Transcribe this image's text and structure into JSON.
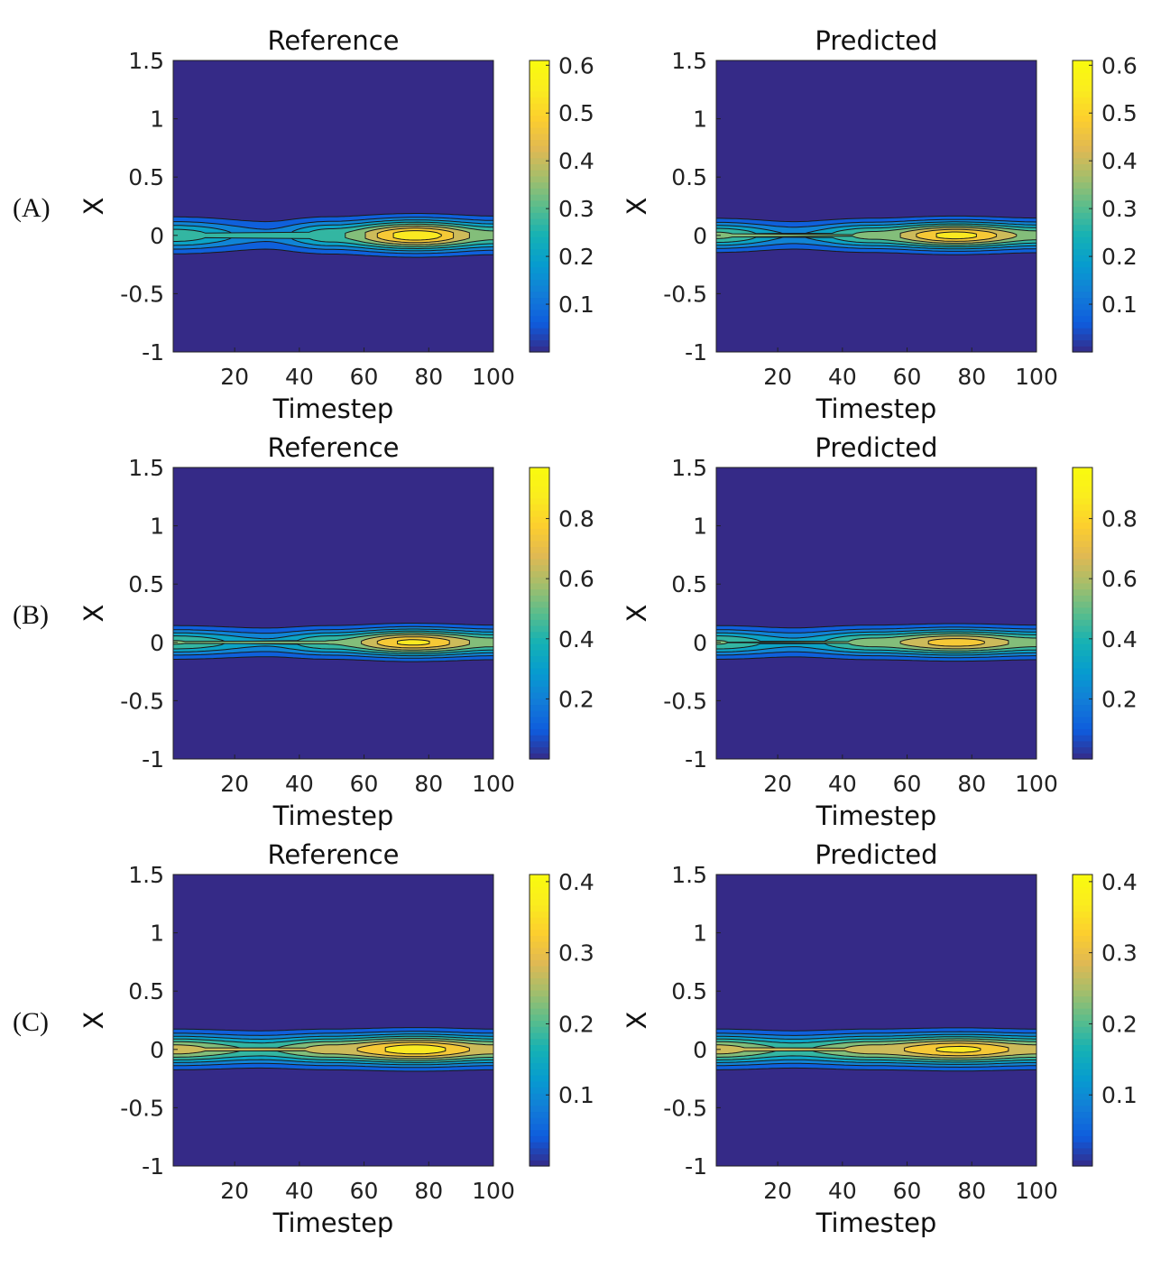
{
  "figure": {
    "rows": [
      {
        "label": "(A)"
      },
      {
        "label": "(B)"
      },
      {
        "label": "(C)"
      }
    ]
  },
  "colormap": "parula",
  "chart_data": [
    {
      "type": "heatmap",
      "row": "(A)",
      "title": "Reference",
      "xlabel": "Timestep",
      "ylabel": "X",
      "xlim": [
        1,
        100
      ],
      "ylim": [
        -1,
        1.5
      ],
      "xticks": [
        20,
        40,
        60,
        80,
        100
      ],
      "yticks": [
        -1,
        -0.5,
        0,
        0.5,
        1,
        1.5
      ],
      "clim": [
        0,
        0.61
      ],
      "cticks": [
        0.1,
        0.2,
        0.3,
        0.4,
        0.5,
        0.6
      ],
      "field": {
        "profile": [
          [
            1,
            0.32
          ],
          [
            30,
            0.16
          ],
          [
            50,
            0.33
          ],
          [
            76,
            0.6
          ],
          [
            100,
            0.37
          ]
        ],
        "sigma": 0.09
      },
      "contour_levels": 9,
      "grid": false,
      "legend": "colorbar-right"
    },
    {
      "type": "heatmap",
      "row": "(A)",
      "title": "Predicted",
      "xlabel": "Timestep",
      "ylabel": "X",
      "xlim": [
        1,
        100
      ],
      "ylim": [
        -1,
        1.5
      ],
      "xticks": [
        20,
        40,
        60,
        80,
        100
      ],
      "yticks": [
        -1,
        -0.5,
        0,
        0.5,
        1,
        1.5
      ],
      "clim": [
        0,
        0.61
      ],
      "cticks": [
        0.1,
        0.2,
        0.3,
        0.4,
        0.5,
        0.6
      ],
      "field": {
        "profile": [
          [
            1,
            0.36
          ],
          [
            25,
            0.2
          ],
          [
            50,
            0.37
          ],
          [
            75,
            0.58
          ],
          [
            100,
            0.38
          ]
        ],
        "sigma": 0.08
      },
      "contour_levels": 9,
      "grid": false,
      "legend": "colorbar-right"
    },
    {
      "type": "heatmap",
      "row": "(B)",
      "title": "Reference",
      "xlabel": "Timestep",
      "ylabel": "X",
      "xlim": [
        1,
        100
      ],
      "ylim": [
        -1,
        1.5
      ],
      "xticks": [
        20,
        40,
        60,
        80,
        100
      ],
      "yticks": [
        -1,
        -0.5,
        0,
        0.5,
        1,
        1.5
      ],
      "clim": [
        0,
        0.97
      ],
      "cticks": [
        0.2,
        0.4,
        0.6,
        0.8
      ],
      "field": {
        "profile": [
          [
            1,
            0.55
          ],
          [
            30,
            0.35
          ],
          [
            50,
            0.55
          ],
          [
            75,
            0.9
          ],
          [
            100,
            0.6
          ]
        ],
        "sigma": 0.08
      },
      "contour_levels": 9,
      "grid": false,
      "legend": "colorbar-right"
    },
    {
      "type": "heatmap",
      "row": "(B)",
      "title": "Predicted",
      "xlabel": "Timestep",
      "ylabel": "X",
      "xlim": [
        1,
        100
      ],
      "ylim": [
        -1,
        1.5
      ],
      "xticks": [
        20,
        40,
        60,
        80,
        100
      ],
      "yticks": [
        -1,
        -0.5,
        0,
        0.5,
        1,
        1.5
      ],
      "clim": [
        0,
        0.97
      ],
      "cticks": [
        0.2,
        0.4,
        0.6,
        0.8
      ],
      "field": {
        "profile": [
          [
            1,
            0.55
          ],
          [
            25,
            0.36
          ],
          [
            50,
            0.6
          ],
          [
            75,
            0.82
          ],
          [
            100,
            0.6
          ]
        ],
        "sigma": 0.08
      },
      "contour_levels": 9,
      "grid": false,
      "legend": "colorbar-right"
    },
    {
      "type": "heatmap",
      "row": "(C)",
      "title": "Reference",
      "xlabel": "Timestep",
      "ylabel": "X",
      "xlim": [
        1,
        100
      ],
      "ylim": [
        -1,
        1.5
      ],
      "xticks": [
        20,
        40,
        60,
        80,
        100
      ],
      "yticks": [
        -1,
        -0.5,
        0,
        0.5,
        1,
        1.5
      ],
      "clim": [
        0,
        0.41
      ],
      "cticks": [
        0.1,
        0.2,
        0.3,
        0.4
      ],
      "field": {
        "profile": [
          [
            1,
            0.3
          ],
          [
            28,
            0.22
          ],
          [
            50,
            0.3
          ],
          [
            76,
            0.4
          ],
          [
            100,
            0.3
          ]
        ],
        "sigma": 0.09
      },
      "contour_levels": 9,
      "grid": false,
      "legend": "colorbar-right"
    },
    {
      "type": "heatmap",
      "row": "(C)",
      "title": "Predicted",
      "xlabel": "Timestep",
      "ylabel": "X",
      "xlim": [
        1,
        100
      ],
      "ylim": [
        -1,
        1.5
      ],
      "xticks": [
        20,
        40,
        60,
        80,
        100
      ],
      "yticks": [
        -1,
        -0.5,
        0,
        0.5,
        1,
        1.5
      ],
      "clim": [
        0,
        0.41
      ],
      "cticks": [
        0.1,
        0.2,
        0.3,
        0.4
      ],
      "field": {
        "profile": [
          [
            1,
            0.3
          ],
          [
            25,
            0.22
          ],
          [
            50,
            0.3
          ],
          [
            76,
            0.38
          ],
          [
            100,
            0.3
          ]
        ],
        "sigma": 0.09
      },
      "contour_levels": 9,
      "grid": false,
      "legend": "colorbar-right"
    }
  ]
}
